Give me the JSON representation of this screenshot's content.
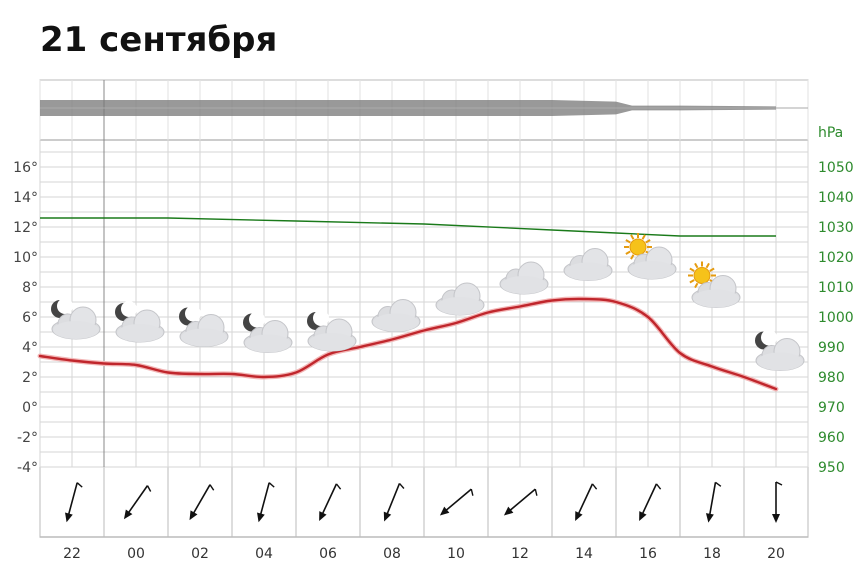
{
  "title": "21 сентября",
  "chart_data": {
    "type": "line",
    "x_ticks": [
      "22",
      "00",
      "02",
      "04",
      "06",
      "08",
      "10",
      "12",
      "14",
      "16",
      "18",
      "20"
    ],
    "temperature": {
      "unit_ticks": [
        "16°",
        "14°",
        "12°",
        "10°",
        "8°",
        "6°",
        "4°",
        "2°",
        "0°",
        "-2°",
        "-4°"
      ],
      "ylim": [
        -4,
        17
      ],
      "x_hours": [
        0,
        1,
        2,
        3,
        4,
        5,
        6,
        7,
        8,
        9,
        10,
        11,
        12,
        13,
        14,
        15,
        16,
        17,
        18,
        19,
        20,
        21,
        22,
        23
      ],
      "values": [
        3.4,
        3.1,
        2.9,
        2.8,
        2.3,
        2.2,
        2.2,
        2.0,
        2.3,
        3.5,
        4.0,
        4.5,
        5.1,
        5.6,
        6.3,
        6.7,
        7.1,
        7.2,
        7.0,
        6.0,
        3.6,
        2.7,
        2.0,
        1.2
      ],
      "color": "#c0262c"
    },
    "pressure": {
      "unit": "hPa",
      "ticks": [
        "1050",
        "1040",
        "1030",
        "1020",
        "1010",
        "1000",
        "990",
        "980",
        "970",
        "960",
        "950"
      ],
      "ylim": [
        950,
        1050
      ],
      "x_hours": [
        0,
        4,
        8,
        12,
        16,
        18,
        20,
        23
      ],
      "values": [
        1033,
        1033,
        1032,
        1031,
        1029,
        1028,
        1027,
        1027
      ],
      "color": "#1a7a1a"
    },
    "precipitation_band": {
      "x_hours": [
        0,
        4,
        8,
        12,
        16,
        18,
        18.5,
        20,
        23
      ],
      "values": [
        1.0,
        1.0,
        1.0,
        1.0,
        1.0,
        0.8,
        0.3,
        0.3,
        0.2
      ],
      "color": "#777777"
    },
    "sky_icons": [
      "night-cloudy-icon",
      "night-cloudy-icon",
      "night-cloudy-icon",
      "night-cloudy-icon",
      "night-cloudy-icon",
      "cloudy-icon",
      "cloudy-icon",
      "cloudy-icon",
      "cloudy-icon",
      "day-partly-cloudy-icon",
      "day-partly-cloudy-icon",
      "night-cloudy-icon"
    ],
    "sky_icon_temperatures": [
      5.6,
      5.4,
      5.1,
      4.7,
      4.8,
      6.1,
      7.2,
      8.6,
      9.5,
      9.6,
      7.7,
      3.5
    ],
    "wind_direction_deg": [
      15,
      35,
      30,
      15,
      25,
      22,
      50,
      50,
      25,
      25,
      10,
      0
    ],
    "grid": true
  }
}
